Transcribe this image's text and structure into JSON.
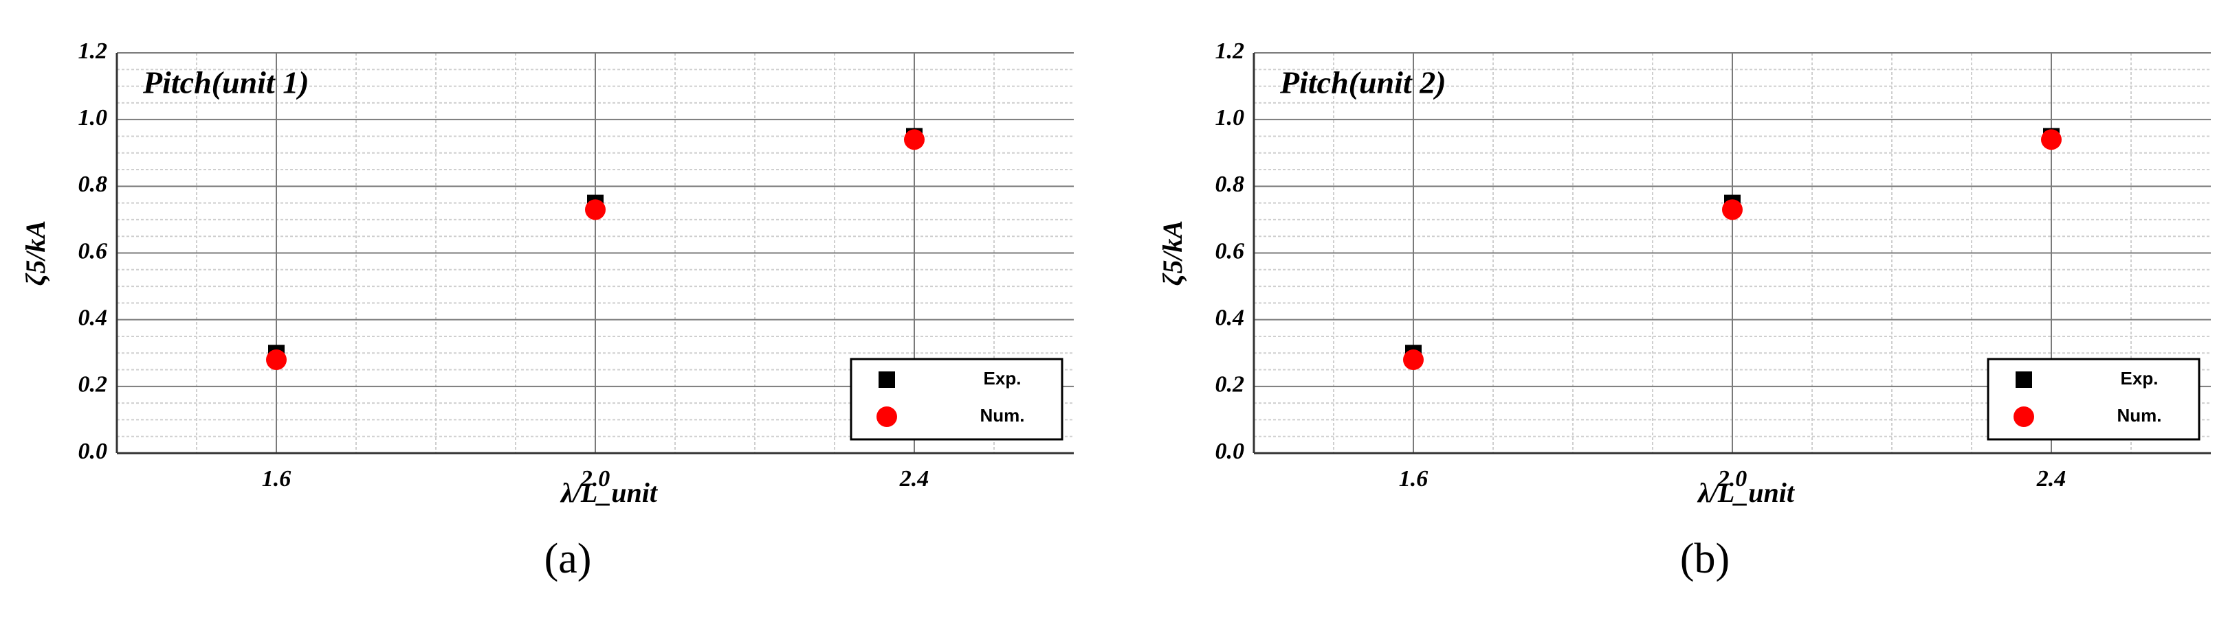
{
  "chart_data": [
    {
      "type": "scatter",
      "title": "Pitch(unit 1)",
      "x_label": "λ/L_unit",
      "y_label": "ζ5/kA",
      "caption": "(a)",
      "x": [
        1.6,
        2.0,
        2.4
      ],
      "series": [
        {
          "name": "Exp.",
          "color": "#000000",
          "marker": "square",
          "values": [
            0.3,
            0.75,
            0.95
          ]
        },
        {
          "name": "Num.",
          "color": "#ff0000",
          "marker": "circle",
          "values": [
            0.28,
            0.73,
            0.94
          ]
        }
      ],
      "xlim": [
        1.4,
        2.6
      ],
      "xticks": [
        1.6,
        {
          "value": 2.0,
          "label": "2.0"
        },
        2.4
      ],
      "ylim": [
        0,
        1.2
      ],
      "yticks": [
        {
          "value": 0,
          "label": "0.0"
        },
        0.2,
        0.4,
        0.6,
        0.8,
        {
          "value": 1.0,
          "label": "1.0"
        },
        1.2
      ],
      "grid": true,
      "legend": "lower right"
    },
    {
      "type": "scatter",
      "title": "Pitch(unit 2)",
      "x_label": "λ/L_unit",
      "y_label": "ζ5/kA",
      "caption": "(b)",
      "x": [
        1.6,
        2.0,
        2.4
      ],
      "series": [
        {
          "name": "Exp.",
          "color": "#000000",
          "marker": "square",
          "values": [
            0.3,
            0.75,
            0.95
          ]
        },
        {
          "name": "Num.",
          "color": "#ff0000",
          "marker": "circle",
          "values": [
            0.28,
            0.73,
            0.94
          ]
        }
      ],
      "xlim": [
        1.4,
        2.6
      ],
      "xticks": [
        1.6,
        {
          "value": 2.0,
          "label": "2.0"
        },
        2.4
      ],
      "ylim": [
        0,
        1.2
      ],
      "yticks": [
        {
          "value": 0,
          "label": "0.0"
        },
        0.2,
        0.4,
        0.6,
        0.8,
        {
          "value": 1.0,
          "label": "1.0"
        },
        1.2
      ],
      "grid": true,
      "legend": "lower right"
    }
  ]
}
